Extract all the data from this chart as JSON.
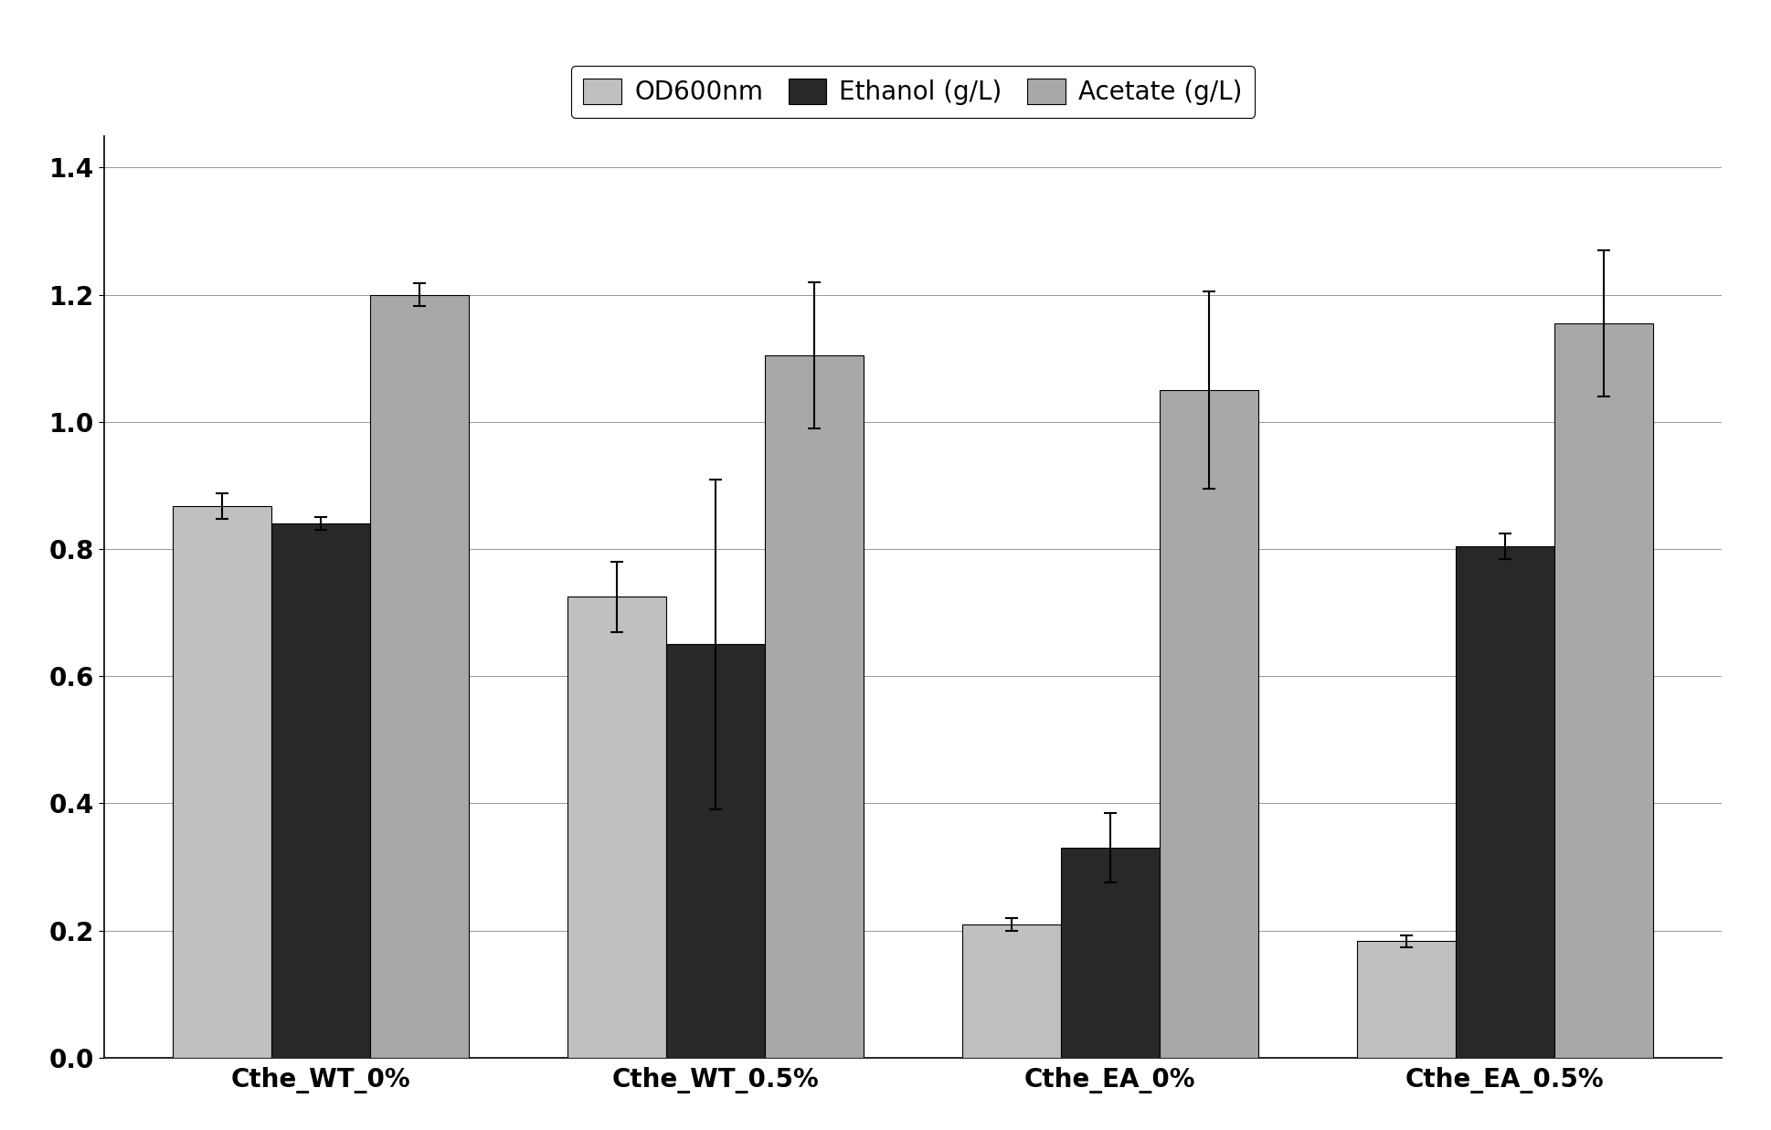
{
  "categories": [
    "Cthe_WT_0%",
    "Cthe_WT_0.5%",
    "Cthe_EA_0%",
    "Cthe_EA_0.5%"
  ],
  "series": {
    "OD600nm": {
      "values": [
        0.868,
        0.725,
        0.21,
        0.183
      ],
      "errors": [
        0.02,
        0.055,
        0.01,
        0.01
      ],
      "color": "#c0c0c0",
      "hatch": "......",
      "edgecolor": "#555555"
    },
    "Ethanol (g/L)": {
      "values": [
        0.84,
        0.65,
        0.33,
        0.805
      ],
      "errors": [
        0.01,
        0.26,
        0.055,
        0.02
      ],
      "color": "#282828",
      "hatch": "......",
      "edgecolor": "#000000"
    },
    "Acetate (g/L)": {
      "values": [
        1.2,
        1.105,
        1.05,
        1.155
      ],
      "errors": [
        0.018,
        0.115,
        0.155,
        0.115
      ],
      "color": "#a8a8a8",
      "hatch": "......",
      "edgecolor": "#666666"
    }
  },
  "ylim": [
    0,
    1.45
  ],
  "yticks": [
    0,
    0.2,
    0.4,
    0.6,
    0.8,
    1.0,
    1.2,
    1.4
  ],
  "figsize": [
    19.38,
    12.37
  ],
  "dpi": 100,
  "bar_width": 0.25,
  "legend_fontsize": 20,
  "tick_fontsize": 20,
  "background_color": "#ffffff"
}
